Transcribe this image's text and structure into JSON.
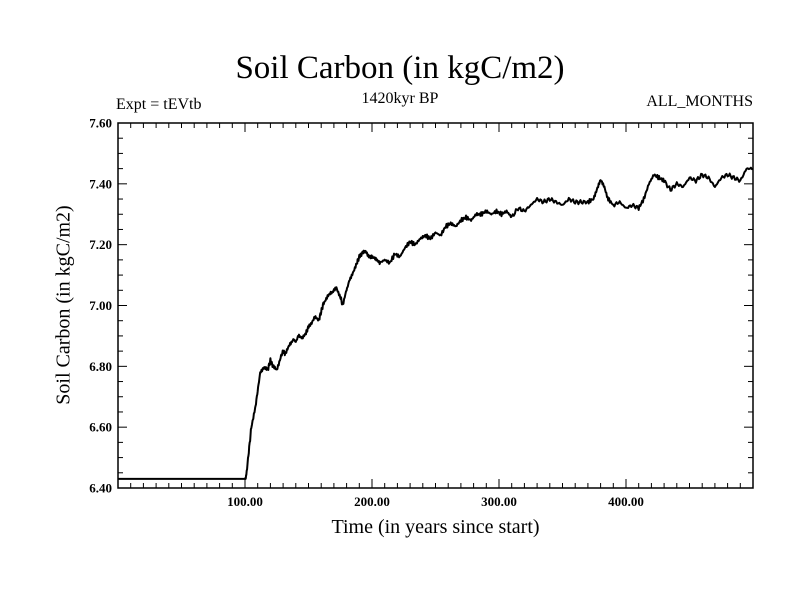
{
  "chart_data": {
    "type": "line",
    "title": "Soil Carbon (in kgC/m2)",
    "subtitle": "1420kyr BP",
    "left_note": "Expt = tEVtb",
    "right_note": "ALL_MONTHS",
    "xlabel": "Time (in years since start)",
    "ylabel": "Soil Carbon (in kgC/m2)",
    "xlim": [
      0,
      500
    ],
    "ylim": [
      6.4,
      7.6
    ],
    "xticks": [
      100,
      200,
      300,
      400
    ],
    "xtick_labels": [
      "100.00",
      "200.00",
      "300.00",
      "400.00"
    ],
    "yticks": [
      6.4,
      6.6,
      6.8,
      7.0,
      7.2,
      7.4,
      7.6
    ],
    "ytick_labels": [
      "6.40",
      "6.60",
      "6.80",
      "7.00",
      "7.20",
      "7.40",
      "7.60"
    ],
    "line_color": "#000000",
    "series": [
      {
        "name": "Soil Carbon",
        "x": [
          0,
          100,
          101,
          103,
          105,
          108,
          110,
          112,
          115,
          118,
          120,
          122,
          125,
          128,
          130,
          132,
          135,
          138,
          140,
          142,
          145,
          148,
          150,
          152,
          155,
          158,
          160,
          162,
          165,
          168,
          170,
          172,
          175,
          177,
          180,
          182,
          185,
          188,
          190,
          192,
          195,
          198,
          200,
          203,
          206,
          210,
          214,
          218,
          222,
          226,
          230,
          234,
          238,
          242,
          246,
          250,
          254,
          258,
          262,
          266,
          270,
          274,
          278,
          282,
          286,
          290,
          294,
          298,
          302,
          306,
          310,
          315,
          320,
          325,
          330,
          335,
          340,
          345,
          350,
          355,
          360,
          365,
          370,
          374,
          377,
          380,
          383,
          386,
          390,
          395,
          400,
          405,
          410,
          414,
          418,
          422,
          426,
          430,
          435,
          440,
          445,
          450,
          455,
          460,
          465,
          470,
          475,
          480,
          485,
          490,
          495,
          500
        ],
        "y": [
          6.43,
          6.43,
          6.44,
          6.52,
          6.6,
          6.66,
          6.72,
          6.78,
          6.8,
          6.79,
          6.82,
          6.8,
          6.79,
          6.83,
          6.85,
          6.84,
          6.87,
          6.89,
          6.88,
          6.9,
          6.89,
          6.91,
          6.93,
          6.94,
          6.96,
          6.95,
          6.98,
          7.01,
          7.03,
          7.04,
          7.05,
          7.06,
          7.03,
          7.0,
          7.05,
          7.08,
          7.11,
          7.14,
          7.16,
          7.17,
          7.18,
          7.16,
          7.16,
          7.15,
          7.14,
          7.15,
          7.14,
          7.17,
          7.16,
          7.19,
          7.21,
          7.2,
          7.22,
          7.23,
          7.22,
          7.24,
          7.23,
          7.26,
          7.27,
          7.26,
          7.28,
          7.29,
          7.28,
          7.3,
          7.3,
          7.31,
          7.3,
          7.31,
          7.3,
          7.31,
          7.29,
          7.32,
          7.31,
          7.33,
          7.35,
          7.34,
          7.35,
          7.34,
          7.33,
          7.35,
          7.34,
          7.34,
          7.34,
          7.35,
          7.38,
          7.41,
          7.39,
          7.35,
          7.33,
          7.34,
          7.32,
          7.33,
          7.32,
          7.35,
          7.4,
          7.43,
          7.42,
          7.41,
          7.38,
          7.4,
          7.39,
          7.42,
          7.41,
          7.43,
          7.42,
          7.39,
          7.42,
          7.43,
          7.42,
          7.41,
          7.45,
          7.45
        ]
      }
    ]
  }
}
